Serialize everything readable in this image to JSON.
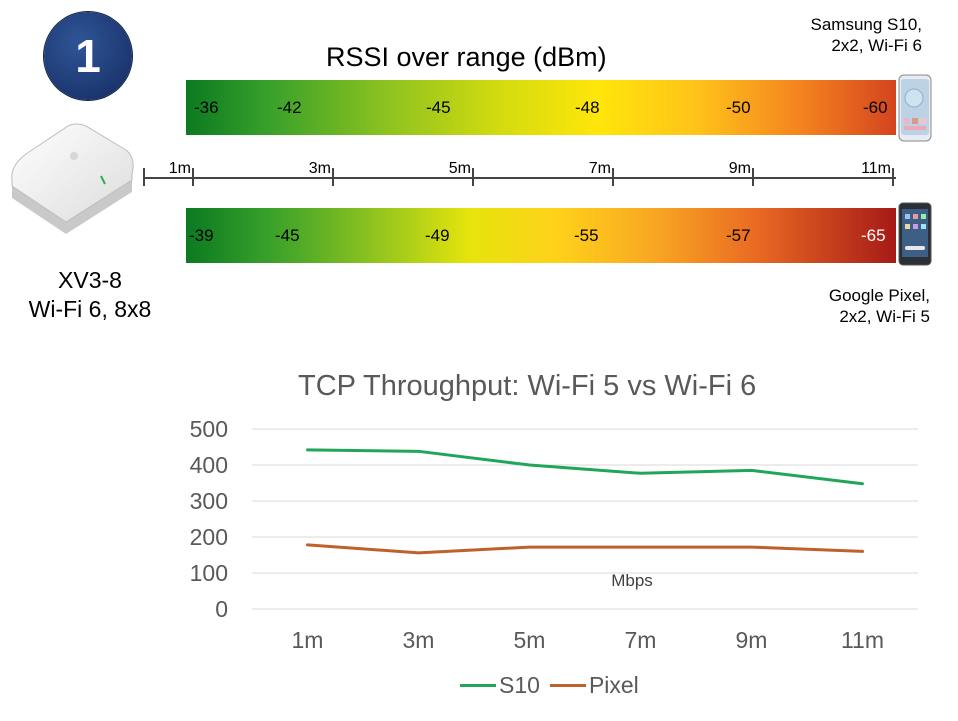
{
  "badge": {
    "number": "1"
  },
  "rssi": {
    "title": "RSSI over range (dBm)",
    "s10_values": [
      "-36",
      "-42",
      "-45",
      "-48",
      "-50",
      "-60"
    ],
    "pixel_values": [
      "-39",
      "-45",
      "-49",
      "-55",
      "-57",
      "-65"
    ],
    "distances": [
      "1m",
      "3m",
      "5m",
      "7m",
      "9m",
      "11m"
    ]
  },
  "devices": {
    "s10_line1": "Samsung S10,",
    "s10_line2": "2x2, Wi-Fi 6",
    "pixel_line1": "Google Pixel,",
    "pixel_line2": "2x2, Wi-Fi 5",
    "ap_line1": "XV3-8",
    "ap_line2": "Wi-Fi 6, 8x8"
  },
  "chart_data": {
    "type": "line",
    "title": "TCP Throughput:  Wi-Fi 5 vs Wi-Fi 6",
    "categories": [
      "1m",
      "3m",
      "5m",
      "7m",
      "9m",
      "11m"
    ],
    "yticks": [
      "0",
      "100",
      "200",
      "300",
      "400",
      "500"
    ],
    "ylim": [
      0,
      500
    ],
    "annotation": "Mbps",
    "series": [
      {
        "name": "S10",
        "values": [
          442,
          438,
          400,
          377,
          385,
          348
        ],
        "color": "#21a55a"
      },
      {
        "name": "Pixel",
        "values": [
          178,
          156,
          172,
          172,
          172,
          160
        ],
        "color": "#c0602a"
      }
    ],
    "grid": true,
    "legend": "bottom"
  }
}
